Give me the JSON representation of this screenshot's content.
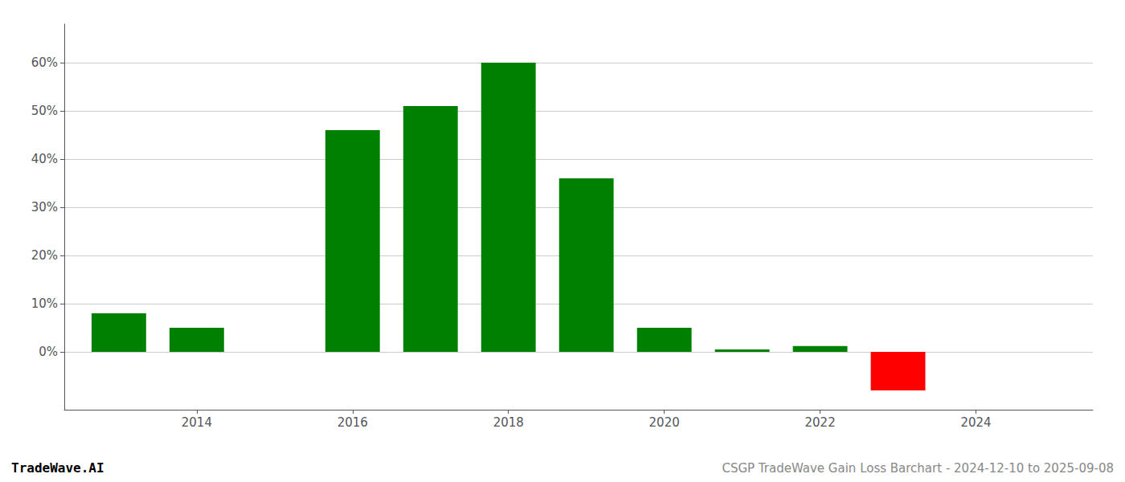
{
  "chart_data": {
    "type": "bar",
    "title": "CSGP TradeWave Gain Loss Barchart - 2024-12-10 to 2025-09-08",
    "annotations": [
      "TradeWave.AI"
    ],
    "x": [
      2013,
      2014,
      2015,
      2016,
      2017,
      2018,
      2019,
      2020,
      2021,
      2022,
      2023,
      2024
    ],
    "values": [
      8.0,
      5.0,
      0.0,
      46.0,
      51.0,
      60.0,
      36.0,
      5.0,
      0.5,
      1.2,
      -8.0,
      0.0
    ],
    "colors": [
      "#008000",
      "#008000",
      "#008000",
      "#008000",
      "#008000",
      "#008000",
      "#008000",
      "#008000",
      "#008000",
      "#008000",
      "#ff0000",
      "#008000"
    ],
    "xlim": [
      2012.3,
      2025.5
    ],
    "xticks": [
      2014,
      2016,
      2018,
      2020,
      2022,
      2024
    ],
    "ylim": [
      -12,
      68
    ],
    "yticks": [
      {
        "value": 0,
        "label": "0%"
      },
      {
        "value": 10,
        "label": "10%"
      },
      {
        "value": 20,
        "label": "20%"
      },
      {
        "value": 30,
        "label": "30%"
      },
      {
        "value": 40,
        "label": "40%"
      },
      {
        "value": 50,
        "label": "50%"
      },
      {
        "value": 60,
        "label": "60%"
      }
    ],
    "grid": true
  }
}
